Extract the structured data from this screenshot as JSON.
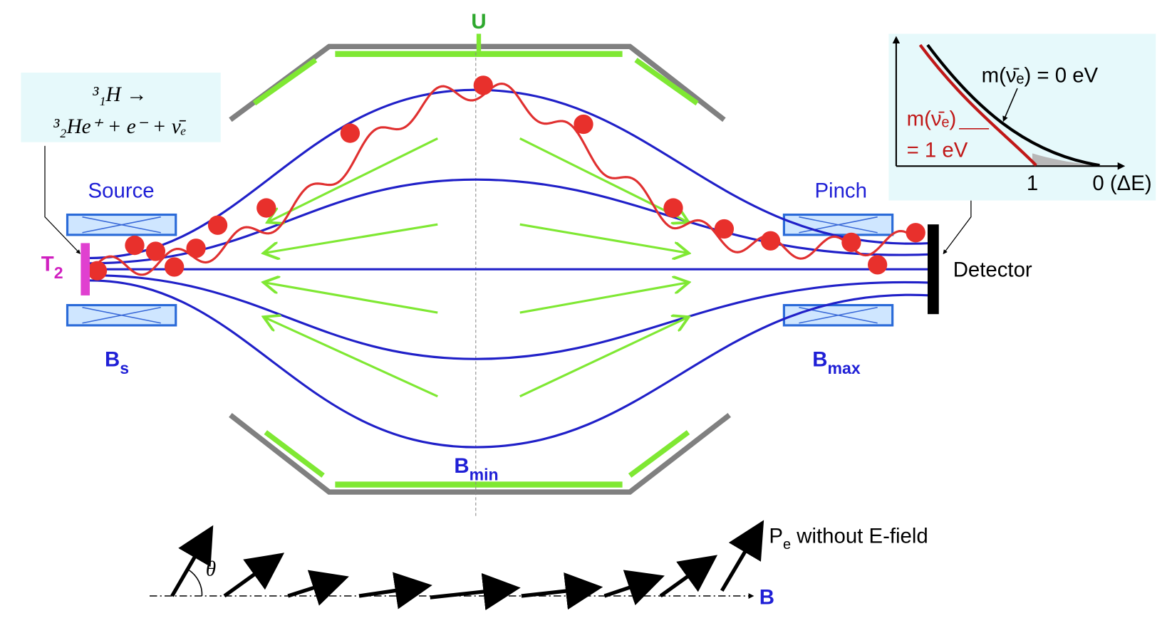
{
  "reaction": {
    "line1": "³₁H →",
    "line2": "³₂He⁺ + e⁻ + ν̄ₑ"
  },
  "electrode_label": "U",
  "labels": {
    "source": "Source",
    "pinch": "Pinch",
    "detector": "Detector",
    "tritium": {
      "main": "T",
      "sub": "2"
    },
    "b_source": {
      "main": "B",
      "sub": "s"
    },
    "b_max": {
      "main": "B",
      "sub": "max"
    },
    "b_min": {
      "main": "B",
      "sub": "min"
    }
  },
  "inset": {
    "curve_zero": "m(ν̄ₑ) = 0 eV",
    "curve_one_line1": "m(ν̄ₑ)",
    "curve_one_line2": "= 1 eV",
    "x_ticks": [
      "1",
      "0 (ΔE)"
    ]
  },
  "momentum": {
    "angle": "θ",
    "label": {
      "main": "P",
      "sub": "e",
      "rest": " without E-field"
    },
    "field": "B"
  }
}
